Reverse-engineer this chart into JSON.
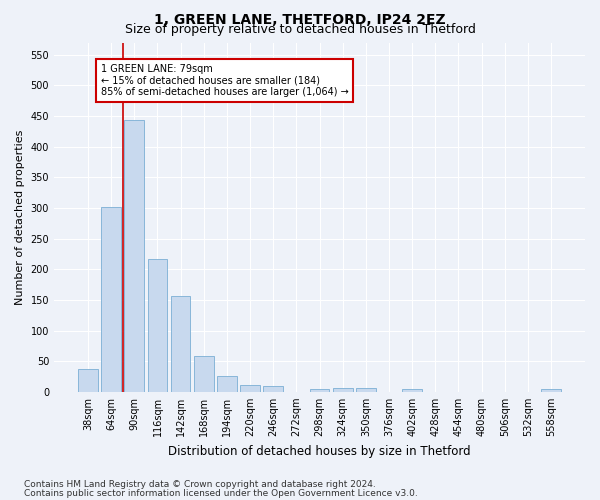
{
  "title1": "1, GREEN LANE, THETFORD, IP24 2EZ",
  "title2": "Size of property relative to detached houses in Thetford",
  "xlabel": "Distribution of detached houses by size in Thetford",
  "ylabel": "Number of detached properties",
  "categories": [
    "38sqm",
    "64sqm",
    "90sqm",
    "116sqm",
    "142sqm",
    "168sqm",
    "194sqm",
    "220sqm",
    "246sqm",
    "272sqm",
    "298sqm",
    "324sqm",
    "350sqm",
    "376sqm",
    "402sqm",
    "428sqm",
    "454sqm",
    "480sqm",
    "506sqm",
    "532sqm",
    "558sqm"
  ],
  "values": [
    37,
    302,
    443,
    217,
    157,
    59,
    25,
    11,
    9,
    0,
    4,
    6,
    6,
    0,
    4,
    0,
    0,
    0,
    0,
    0,
    5
  ],
  "bar_color": "#c8d9ee",
  "bar_edge_color": "#7bafd4",
  "vline_color": "#cc0000",
  "annotation_text": "1 GREEN LANE: 79sqm\n← 15% of detached houses are smaller (184)\n85% of semi-detached houses are larger (1,064) →",
  "annotation_box_color": "white",
  "annotation_box_edge": "#cc0000",
  "ylim": [
    0,
    570
  ],
  "yticks": [
    0,
    50,
    100,
    150,
    200,
    250,
    300,
    350,
    400,
    450,
    500,
    550
  ],
  "footer1": "Contains HM Land Registry data © Crown copyright and database right 2024.",
  "footer2": "Contains public sector information licensed under the Open Government Licence v3.0.",
  "bg_color": "#eef2f9",
  "plot_bg_color": "#eef2f9",
  "title1_fontsize": 10,
  "title2_fontsize": 9,
  "xlabel_fontsize": 8.5,
  "ylabel_fontsize": 8,
  "tick_fontsize": 7,
  "footer_fontsize": 6.5
}
